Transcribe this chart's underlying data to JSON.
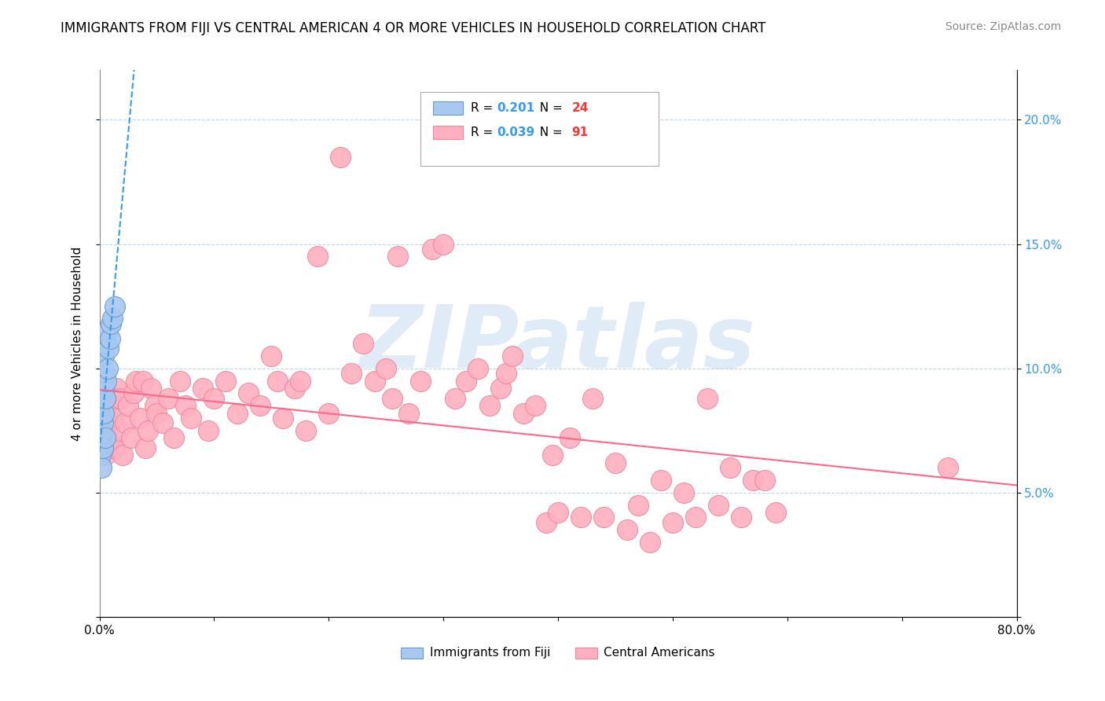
{
  "title": "IMMIGRANTS FROM FIJI VS CENTRAL AMERICAN 4 OR MORE VEHICLES IN HOUSEHOLD CORRELATION CHART",
  "source": "Source: ZipAtlas.com",
  "ylabel": "4 or more Vehicles in Household",
  "xmin": 0.0,
  "xmax": 0.8,
  "ymin": 0.0,
  "ymax": 0.22,
  "yticks": [
    0.0,
    0.05,
    0.1,
    0.15,
    0.2
  ],
  "ytick_labels_left": [
    "",
    "",
    "",
    "",
    ""
  ],
  "ytick_labels_right": [
    "",
    "5.0%",
    "10.0%",
    "15.0%",
    "20.0%"
  ],
  "xticks": [
    0.0,
    0.1,
    0.2,
    0.3,
    0.4,
    0.5,
    0.6,
    0.7,
    0.8
  ],
  "xtick_labels": [
    "0.0%",
    "",
    "",
    "",
    "",
    "",
    "",
    "",
    "80.0%"
  ],
  "fiji_color": "#a8c8f0",
  "fiji_edge_color": "#6699cc",
  "central_color": "#ffb0c0",
  "central_edge_color": "#ee8899",
  "trend_fiji_color": "#3399ff",
  "trend_central_color": "#ff6688",
  "fiji_R": 0.201,
  "fiji_N": 24,
  "central_R": 0.039,
  "central_N": 91,
  "legend_R_color": "#3399ff",
  "legend_N_color": "#ff3333",
  "watermark": "ZIPatlas",
  "fiji_x": [
    0.001,
    0.001,
    0.002,
    0.002,
    0.002,
    0.003,
    0.003,
    0.003,
    0.003,
    0.004,
    0.004,
    0.004,
    0.005,
    0.005,
    0.005,
    0.006,
    0.006,
    0.007,
    0.007,
    0.008,
    0.009,
    0.01,
    0.011,
    0.013
  ],
  "fiji_y": [
    0.065,
    0.07,
    0.06,
    0.075,
    0.08,
    0.068,
    0.078,
    0.09,
    0.1,
    0.082,
    0.092,
    0.105,
    0.072,
    0.088,
    0.098,
    0.095,
    0.11,
    0.1,
    0.115,
    0.108,
    0.112,
    0.118,
    0.12,
    0.125
  ],
  "central_x": [
    0.002,
    0.003,
    0.004,
    0.005,
    0.006,
    0.007,
    0.008,
    0.009,
    0.01,
    0.012,
    0.013,
    0.015,
    0.017,
    0.018,
    0.02,
    0.022,
    0.025,
    0.028,
    0.03,
    0.032,
    0.035,
    0.038,
    0.04,
    0.042,
    0.045,
    0.048,
    0.05,
    0.055,
    0.06,
    0.065,
    0.07,
    0.075,
    0.08,
    0.09,
    0.095,
    0.1,
    0.11,
    0.12,
    0.13,
    0.14,
    0.15,
    0.155,
    0.16,
    0.17,
    0.175,
    0.18,
    0.19,
    0.2,
    0.21,
    0.22,
    0.23,
    0.24,
    0.25,
    0.255,
    0.26,
    0.27,
    0.28,
    0.29,
    0.3,
    0.31,
    0.32,
    0.33,
    0.34,
    0.35,
    0.355,
    0.36,
    0.37,
    0.38,
    0.39,
    0.395,
    0.4,
    0.41,
    0.42,
    0.43,
    0.44,
    0.45,
    0.46,
    0.47,
    0.48,
    0.49,
    0.5,
    0.51,
    0.52,
    0.53,
    0.54,
    0.55,
    0.56,
    0.57,
    0.58,
    0.59,
    0.74
  ],
  "central_y": [
    0.075,
    0.068,
    0.082,
    0.065,
    0.09,
    0.072,
    0.078,
    0.085,
    0.07,
    0.08,
    0.068,
    0.092,
    0.075,
    0.088,
    0.065,
    0.078,
    0.085,
    0.072,
    0.09,
    0.095,
    0.08,
    0.095,
    0.068,
    0.075,
    0.092,
    0.085,
    0.082,
    0.078,
    0.088,
    0.072,
    0.095,
    0.085,
    0.08,
    0.092,
    0.075,
    0.088,
    0.095,
    0.082,
    0.09,
    0.085,
    0.105,
    0.095,
    0.08,
    0.092,
    0.095,
    0.075,
    0.145,
    0.082,
    0.185,
    0.098,
    0.11,
    0.095,
    0.1,
    0.088,
    0.145,
    0.082,
    0.095,
    0.148,
    0.15,
    0.088,
    0.095,
    0.1,
    0.085,
    0.092,
    0.098,
    0.105,
    0.082,
    0.085,
    0.038,
    0.065,
    0.042,
    0.072,
    0.04,
    0.088,
    0.04,
    0.062,
    0.035,
    0.045,
    0.03,
    0.055,
    0.038,
    0.05,
    0.04,
    0.088,
    0.045,
    0.06,
    0.04,
    0.055,
    0.055,
    0.042,
    0.06
  ]
}
